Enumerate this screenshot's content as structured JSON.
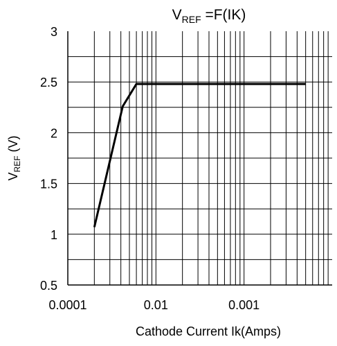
{
  "chart_data": {
    "type": "line",
    "title_main": "V",
    "title_sub": "REF",
    "title_rest": " =F(IK)",
    "ylabel_main": "V",
    "ylabel_sub": "REF",
    "ylabel_rest": " (V)",
    "xlabel": "Cathode Current Ik(Amps)",
    "x_tick_labels": [
      "0.0001",
      "0.01",
      "0.001"
    ],
    "x_scale": "log",
    "x_decades": 3,
    "xlim": [
      0.0001,
      0.1
    ],
    "ylim": [
      0.5,
      3
    ],
    "y_ticks": [
      0.5,
      1,
      1.5,
      2,
      2.5,
      3
    ],
    "y_tick_labels": [
      "0.5",
      "1",
      "1.5",
      "2",
      "2.5",
      "3"
    ],
    "grid": true,
    "series": [
      {
        "color": "#000000",
        "points": [
          {
            "x": 0.0002,
            "y": 1.07
          },
          {
            "x": 0.00042,
            "y": 2.26
          },
          {
            "x": 0.0006,
            "y": 2.48
          },
          {
            "x": 0.05,
            "y": 2.48
          }
        ]
      }
    ]
  }
}
